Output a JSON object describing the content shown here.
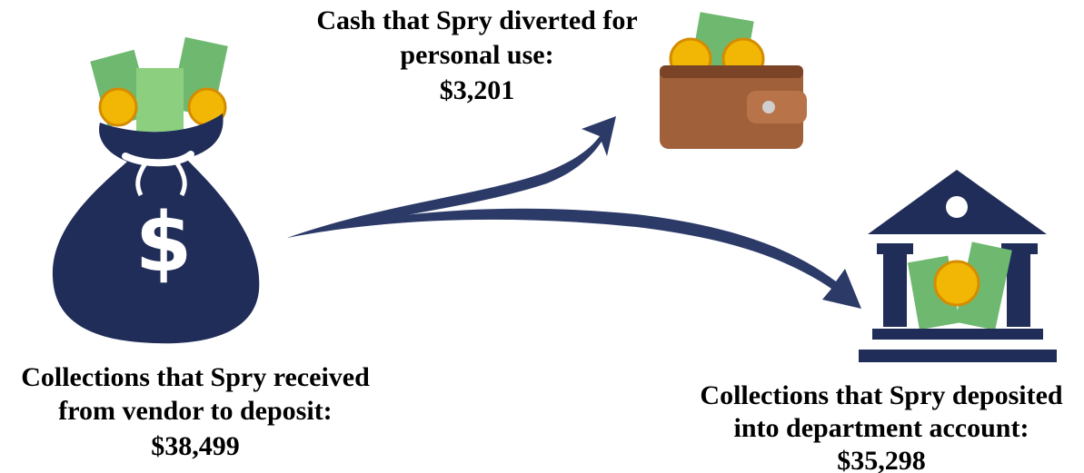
{
  "nodes": [
    {
      "label": [
        "Collections that Spry received",
        "from vendor to deposit:"
      ],
      "amount": "$38,499"
    },
    {
      "label": [
        "Cash that Spry diverted for",
        "personal use:"
      ],
      "amount": "$3,201"
    },
    {
      "label": [
        "Collections that Spry deposited",
        "into department account:"
      ],
      "amount": "$35,298"
    }
  ]
}
